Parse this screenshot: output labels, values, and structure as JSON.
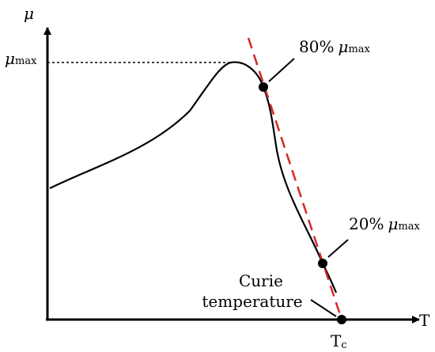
{
  "axes": {
    "y_symbol": "μ",
    "y_max_main": "μ",
    "y_max_sub": "max",
    "x_symbol": "T",
    "tc_main": "T",
    "tc_sub": "c"
  },
  "annotations": {
    "p80_percent": "80%",
    "p80_symbol": "μ",
    "p80_sub": "max",
    "p20_percent": "20%",
    "p20_symbol": "μ",
    "p20_sub": "max",
    "curie_line1": "Curie",
    "curie_line2": "temperature"
  },
  "colors": {
    "curve": "#000000",
    "tangent": "#d62828",
    "axes": "#000000"
  }
}
